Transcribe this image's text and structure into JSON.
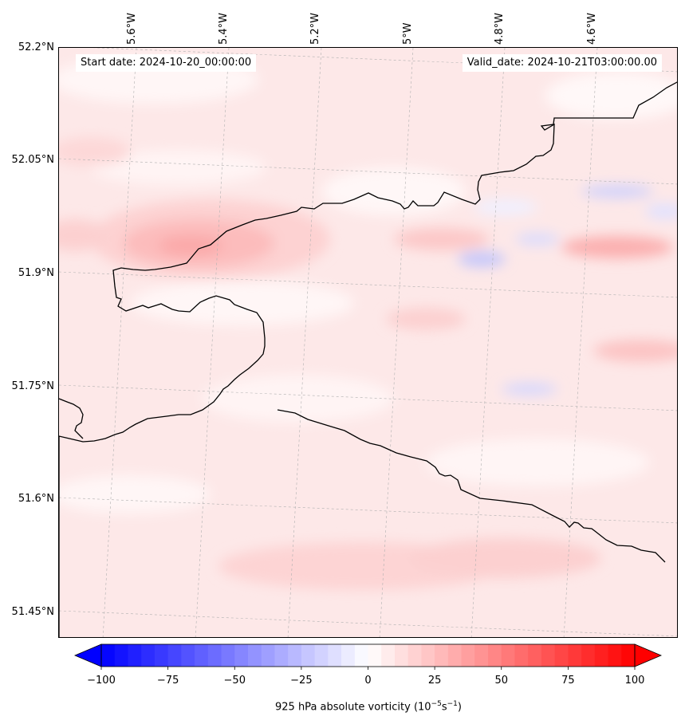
{
  "header": {
    "start_date": "Start date: 2024-10-20_00:00:00",
    "valid_date": "Valid_date: 2024-10-21T03:00:00.00"
  },
  "map": {
    "lat_labels": [
      "52.2°N",
      "52.05°N",
      "51.9°N",
      "51.75°N",
      "51.6°N",
      "51.45°N"
    ],
    "lon_labels": [
      "5.6°W",
      "5.4°W",
      "5.2°W",
      "5°W",
      "4.8°W",
      "4.6°W"
    ],
    "coastline_color": "#000000",
    "gridline_color": "#b0b0b0",
    "background_field_color": "#fde6e6"
  },
  "colorbar": {
    "label_prefix": "925 hPa absolute vorticity (10",
    "label_exp1": "−5",
    "label_mid": "s",
    "label_exp2": "−1",
    "label_suffix": ")",
    "ticks": [
      "−100",
      "−75",
      "−50",
      "−25",
      "0",
      "25",
      "50",
      "75",
      "100"
    ],
    "tick_values": [
      -100,
      -75,
      -50,
      -25,
      0,
      25,
      50,
      75,
      100
    ],
    "min": -100,
    "max": 100,
    "extend": "both",
    "colormap": "bwr",
    "low_color": "#0000ff",
    "mid_color": "#ffffff",
    "high_color": "#ff0000"
  }
}
